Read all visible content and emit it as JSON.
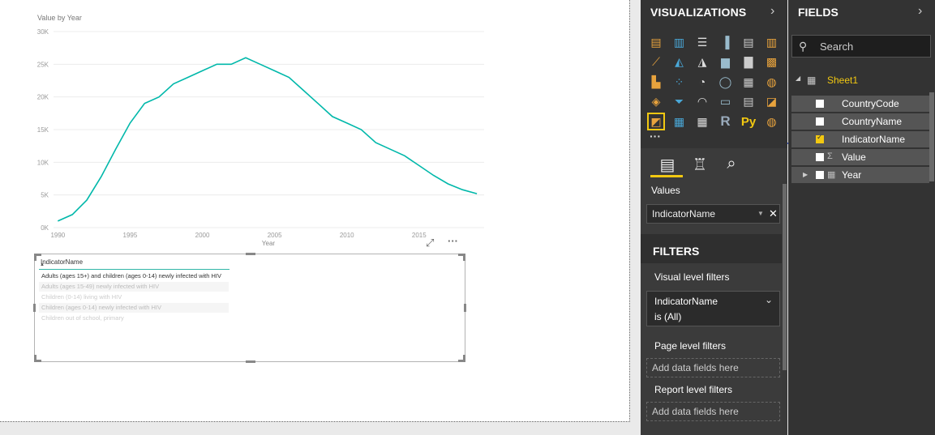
{
  "chart_data": {
    "type": "line",
    "title": "Value by Year",
    "xlabel": "Year",
    "ylabel": "",
    "x": [
      1990,
      1991,
      1992,
      1993,
      1994,
      1995,
      1996,
      1997,
      1998,
      1999,
      2000,
      2001,
      2002,
      2003,
      2004,
      2005,
      2006,
      2007,
      2008,
      2009,
      2010,
      2011,
      2012,
      2013,
      2014,
      2015,
      2016,
      2017
    ],
    "series": [
      {
        "values": [
          1000,
          2000,
          4200,
          7800,
          12000,
          16000,
          19000,
          20000,
          22000,
          23000,
          24000,
          25000,
          25000,
          26000,
          25000,
          24000,
          23000,
          21000,
          19000,
          17000,
          16000,
          15000,
          13000,
          12000,
          11000,
          9500,
          8000,
          6700
        ],
        "color": "#01b8aa"
      }
    ],
    "xlim": [
      1989.7,
      2019.5
    ],
    "ylim": [
      0,
      30000
    ],
    "x_ticks": [
      "1990",
      "1995",
      "2000",
      "2005",
      "2010",
      "2015"
    ],
    "y_ticks": [
      "0K",
      "5K",
      "10K",
      "15K",
      "20K",
      "25K",
      "30K"
    ],
    "grid": true,
    "extra_tail": [
      {
        "x": 2018,
        "y": 5800
      },
      {
        "x": 2019,
        "y": 5200
      }
    ]
  },
  "chart_header": {
    "focus_icon": "focus-mode-icon",
    "more_icon": "more-options-icon",
    "more_label": "···",
    "focus_label": "⤢"
  },
  "slicer": {
    "header": "IndicatorName",
    "sort_glyph": "▲",
    "items": [
      {
        "label": "Adults (ages 15+) and children (ages 0-14) newly infected with HIV",
        "selected": true
      },
      {
        "label": "Adults (ages 15-49) newly infected with HIV",
        "selected": false
      },
      {
        "label": "Children (0-14) living with HIV",
        "selected": false
      },
      {
        "label": "Children (ages 0-14) newly infected with HIV",
        "selected": false
      },
      {
        "label": "Children out of school, primary",
        "selected": false
      }
    ]
  },
  "visualizations": {
    "title": "VISUALIZATIONS",
    "chevron": "›",
    "more": "···",
    "python_label": "Py",
    "r_label": "R",
    "values_label": "Values",
    "values_field": "IndicatorName",
    "values_dropdown": "▼",
    "values_remove": "✕",
    "filters_title": "FILTERS",
    "visual_level_filters": "Visual level filters",
    "filter_field": "IndicatorName",
    "filter_value": "is (All)",
    "filter_chevron": "⌄",
    "page_level_filters": "Page level filters",
    "report_level_filters": "Report level filters",
    "add_data_fields": "Add data fields here"
  },
  "fields": {
    "title": "FIELDS",
    "chevron": "›",
    "search_placeholder": "Search",
    "table_name": "Sheet1",
    "table_arrow": "◢",
    "items": [
      {
        "label": "CountryCode",
        "checked": false
      },
      {
        "label": "CountryName",
        "checked": false
      },
      {
        "label": "IndicatorName",
        "checked": true
      },
      {
        "label": "Value",
        "checked": false,
        "type_icon": "Σ"
      },
      {
        "label": "Year",
        "checked": false,
        "type_icon": "▦",
        "expandable": true
      }
    ]
  },
  "colors": {
    "accent": "#f2c811",
    "line": "#01b8aa",
    "pane": "#333333"
  }
}
